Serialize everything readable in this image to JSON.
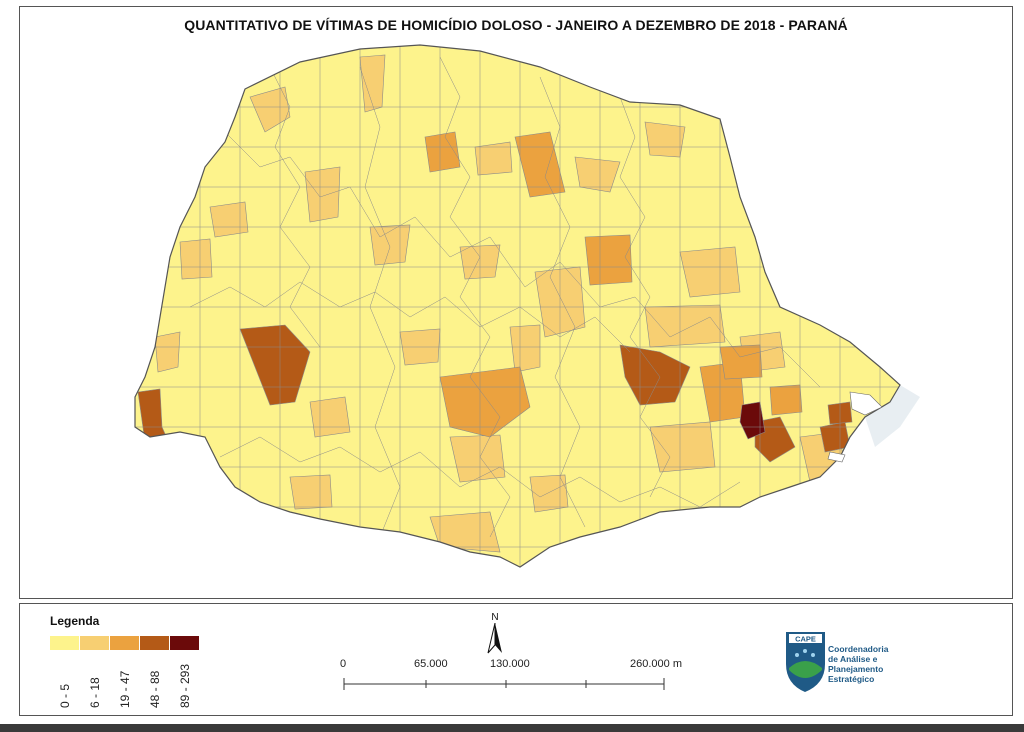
{
  "title": "QUANTITATIVO DE VÍTIMAS DE HOMICÍDIO DOLOSO - JANEIRO A DEZEMBRO DE 2018 - PARANÁ",
  "colors": {
    "class_1": "#fdf38c",
    "class_2": "#f7cf72",
    "class_3": "#eba23f",
    "class_4": "#b45a17",
    "class_5": "#6b0a0a",
    "border": "#8a8a8a",
    "ocean": "#cfe3f0"
  },
  "legend": {
    "title": "Legenda",
    "classes": [
      {
        "label": "0 - 5",
        "color": "#fdf38c"
      },
      {
        "label": "6 - 18",
        "color": "#f7cf72"
      },
      {
        "label": "19 - 47",
        "color": "#eba23f"
      },
      {
        "label": "48 - 88",
        "color": "#b45a17"
      },
      {
        "label": "89 - 293",
        "color": "#6b0a0a"
      }
    ]
  },
  "north_arrow": {
    "label": "N"
  },
  "scale": {
    "labels": [
      "0",
      "65.000",
      "130.000",
      "260.000 m"
    ],
    "values": [
      0,
      65000,
      130000,
      260000
    ]
  },
  "logo": {
    "acronym": "CAPE",
    "line1": "Coordenadoria",
    "line2": "de Análise e",
    "line3": "Planejamento",
    "line4": "Estratégico"
  }
}
